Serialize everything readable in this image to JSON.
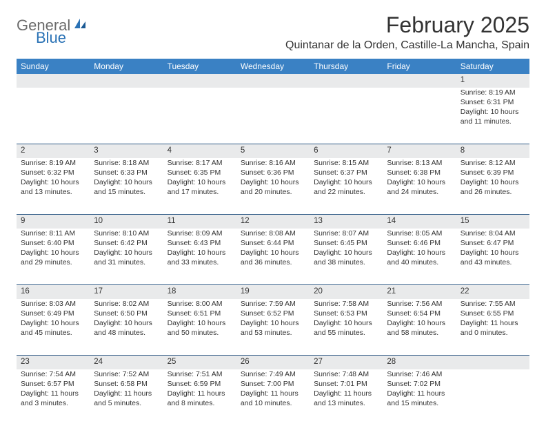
{
  "brand": {
    "general": "General",
    "blue": "Blue"
  },
  "title": "February 2025",
  "location": "Quintanar de la Orden, Castille-La Mancha, Spain",
  "colors": {
    "header_bg": "#3a81c4",
    "header_text": "#ffffff",
    "daynum_bg": "#e9eaeb",
    "row_divider": "#2f5a85",
    "logo_gray": "#6b6b6b",
    "logo_blue": "#2a72b5",
    "text": "#333333",
    "page_bg": "#ffffff"
  },
  "weekdays": [
    "Sunday",
    "Monday",
    "Tuesday",
    "Wednesday",
    "Thursday",
    "Friday",
    "Saturday"
  ],
  "weeks": [
    [
      null,
      null,
      null,
      null,
      null,
      null,
      {
        "n": "1",
        "sr": "Sunrise: 8:19 AM",
        "ss": "Sunset: 6:31 PM",
        "d1": "Daylight: 10 hours",
        "d2": "and 11 minutes."
      }
    ],
    [
      {
        "n": "2",
        "sr": "Sunrise: 8:19 AM",
        "ss": "Sunset: 6:32 PM",
        "d1": "Daylight: 10 hours",
        "d2": "and 13 minutes."
      },
      {
        "n": "3",
        "sr": "Sunrise: 8:18 AM",
        "ss": "Sunset: 6:33 PM",
        "d1": "Daylight: 10 hours",
        "d2": "and 15 minutes."
      },
      {
        "n": "4",
        "sr": "Sunrise: 8:17 AM",
        "ss": "Sunset: 6:35 PM",
        "d1": "Daylight: 10 hours",
        "d2": "and 17 minutes."
      },
      {
        "n": "5",
        "sr": "Sunrise: 8:16 AM",
        "ss": "Sunset: 6:36 PM",
        "d1": "Daylight: 10 hours",
        "d2": "and 20 minutes."
      },
      {
        "n": "6",
        "sr": "Sunrise: 8:15 AM",
        "ss": "Sunset: 6:37 PM",
        "d1": "Daylight: 10 hours",
        "d2": "and 22 minutes."
      },
      {
        "n": "7",
        "sr": "Sunrise: 8:13 AM",
        "ss": "Sunset: 6:38 PM",
        "d1": "Daylight: 10 hours",
        "d2": "and 24 minutes."
      },
      {
        "n": "8",
        "sr": "Sunrise: 8:12 AM",
        "ss": "Sunset: 6:39 PM",
        "d1": "Daylight: 10 hours",
        "d2": "and 26 minutes."
      }
    ],
    [
      {
        "n": "9",
        "sr": "Sunrise: 8:11 AM",
        "ss": "Sunset: 6:40 PM",
        "d1": "Daylight: 10 hours",
        "d2": "and 29 minutes."
      },
      {
        "n": "10",
        "sr": "Sunrise: 8:10 AM",
        "ss": "Sunset: 6:42 PM",
        "d1": "Daylight: 10 hours",
        "d2": "and 31 minutes."
      },
      {
        "n": "11",
        "sr": "Sunrise: 8:09 AM",
        "ss": "Sunset: 6:43 PM",
        "d1": "Daylight: 10 hours",
        "d2": "and 33 minutes."
      },
      {
        "n": "12",
        "sr": "Sunrise: 8:08 AM",
        "ss": "Sunset: 6:44 PM",
        "d1": "Daylight: 10 hours",
        "d2": "and 36 minutes."
      },
      {
        "n": "13",
        "sr": "Sunrise: 8:07 AM",
        "ss": "Sunset: 6:45 PM",
        "d1": "Daylight: 10 hours",
        "d2": "and 38 minutes."
      },
      {
        "n": "14",
        "sr": "Sunrise: 8:05 AM",
        "ss": "Sunset: 6:46 PM",
        "d1": "Daylight: 10 hours",
        "d2": "and 40 minutes."
      },
      {
        "n": "15",
        "sr": "Sunrise: 8:04 AM",
        "ss": "Sunset: 6:47 PM",
        "d1": "Daylight: 10 hours",
        "d2": "and 43 minutes."
      }
    ],
    [
      {
        "n": "16",
        "sr": "Sunrise: 8:03 AM",
        "ss": "Sunset: 6:49 PM",
        "d1": "Daylight: 10 hours",
        "d2": "and 45 minutes."
      },
      {
        "n": "17",
        "sr": "Sunrise: 8:02 AM",
        "ss": "Sunset: 6:50 PM",
        "d1": "Daylight: 10 hours",
        "d2": "and 48 minutes."
      },
      {
        "n": "18",
        "sr": "Sunrise: 8:00 AM",
        "ss": "Sunset: 6:51 PM",
        "d1": "Daylight: 10 hours",
        "d2": "and 50 minutes."
      },
      {
        "n": "19",
        "sr": "Sunrise: 7:59 AM",
        "ss": "Sunset: 6:52 PM",
        "d1": "Daylight: 10 hours",
        "d2": "and 53 minutes."
      },
      {
        "n": "20",
        "sr": "Sunrise: 7:58 AM",
        "ss": "Sunset: 6:53 PM",
        "d1": "Daylight: 10 hours",
        "d2": "and 55 minutes."
      },
      {
        "n": "21",
        "sr": "Sunrise: 7:56 AM",
        "ss": "Sunset: 6:54 PM",
        "d1": "Daylight: 10 hours",
        "d2": "and 58 minutes."
      },
      {
        "n": "22",
        "sr": "Sunrise: 7:55 AM",
        "ss": "Sunset: 6:55 PM",
        "d1": "Daylight: 11 hours",
        "d2": "and 0 minutes."
      }
    ],
    [
      {
        "n": "23",
        "sr": "Sunrise: 7:54 AM",
        "ss": "Sunset: 6:57 PM",
        "d1": "Daylight: 11 hours",
        "d2": "and 3 minutes."
      },
      {
        "n": "24",
        "sr": "Sunrise: 7:52 AM",
        "ss": "Sunset: 6:58 PM",
        "d1": "Daylight: 11 hours",
        "d2": "and 5 minutes."
      },
      {
        "n": "25",
        "sr": "Sunrise: 7:51 AM",
        "ss": "Sunset: 6:59 PM",
        "d1": "Daylight: 11 hours",
        "d2": "and 8 minutes."
      },
      {
        "n": "26",
        "sr": "Sunrise: 7:49 AM",
        "ss": "Sunset: 7:00 PM",
        "d1": "Daylight: 11 hours",
        "d2": "and 10 minutes."
      },
      {
        "n": "27",
        "sr": "Sunrise: 7:48 AM",
        "ss": "Sunset: 7:01 PM",
        "d1": "Daylight: 11 hours",
        "d2": "and 13 minutes."
      },
      {
        "n": "28",
        "sr": "Sunrise: 7:46 AM",
        "ss": "Sunset: 7:02 PM",
        "d1": "Daylight: 11 hours",
        "d2": "and 15 minutes."
      },
      null
    ]
  ]
}
